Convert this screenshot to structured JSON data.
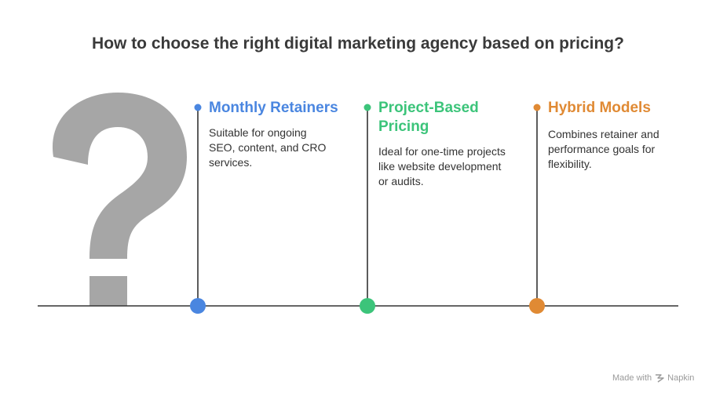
{
  "title": "How to choose the right digital marketing agency based on pricing?",
  "colors": {
    "blue": "#4a86e0",
    "green": "#3cc47a",
    "orange": "#e08a34",
    "question_mark": "#a6a6a6",
    "line": "#333333"
  },
  "items": [
    {
      "title": "Monthly Retainers",
      "description": "Suitable for ongoing SEO, content, and CRO services.",
      "color": "#4a86e0"
    },
    {
      "title": "Project-Based Pricing",
      "description": "Ideal for one-time projects like website development or audits.",
      "color": "#3cc47a"
    },
    {
      "title": "Hybrid Models",
      "description": "Combines retainer and performance goals for flexibility.",
      "color": "#e08a34"
    }
  ],
  "footer": {
    "made_with": "Made with",
    "brand": "Napkin"
  },
  "icons": [
    "question-mark-icon",
    "napkin-logo-icon"
  ]
}
